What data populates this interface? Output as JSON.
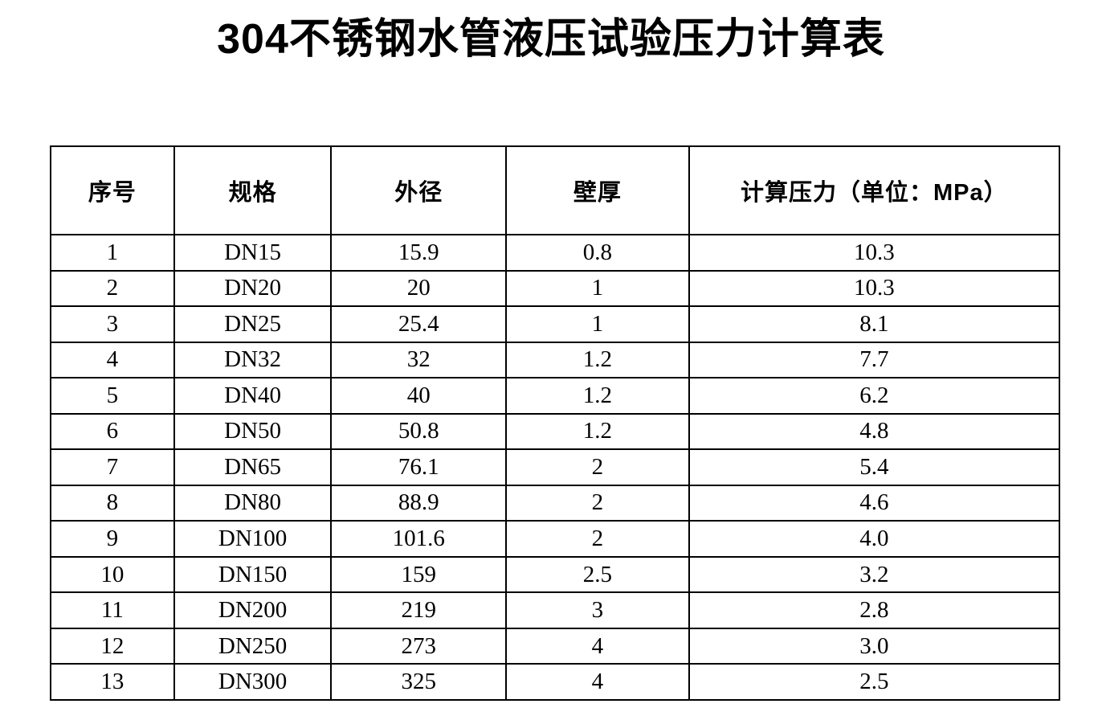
{
  "title": "304不锈钢水管液压试验压力计算表",
  "table": {
    "headers": [
      "序号",
      "规格",
      "外径",
      "壁厚",
      "计算压力（单位：MPa）"
    ],
    "rows": [
      [
        "1",
        "DN15",
        "15.9",
        "0.8",
        "10.3"
      ],
      [
        "2",
        "DN20",
        "20",
        "1",
        "10.3"
      ],
      [
        "3",
        "DN25",
        "25.4",
        "1",
        "8.1"
      ],
      [
        "4",
        "DN32",
        "32",
        "1.2",
        "7.7"
      ],
      [
        "5",
        "DN40",
        "40",
        "1.2",
        "6.2"
      ],
      [
        "6",
        "DN50",
        "50.8",
        "1.2",
        "4.8"
      ],
      [
        "7",
        "DN65",
        "76.1",
        "2",
        "5.4"
      ],
      [
        "8",
        "DN80",
        "88.9",
        "2",
        "4.6"
      ],
      [
        "9",
        "DN100",
        "101.6",
        "2",
        "4.0"
      ],
      [
        "10",
        "DN150",
        "159",
        "2.5",
        "3.2"
      ],
      [
        "11",
        "DN200",
        "219",
        "3",
        "2.8"
      ],
      [
        "12",
        "DN250",
        "273",
        "4",
        "3.0"
      ],
      [
        "13",
        "DN300",
        "325",
        "4",
        "2.5"
      ]
    ]
  },
  "colors": {
    "border": "#000000",
    "text": "#000000",
    "background": "#ffffff"
  }
}
